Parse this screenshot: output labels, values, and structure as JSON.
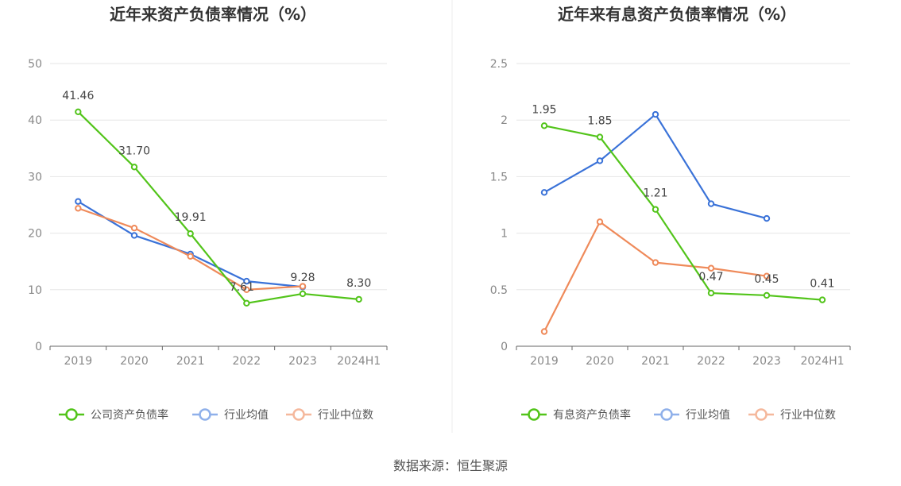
{
  "source": "数据来源：恒生聚源",
  "colors": {
    "green": "#52c41a",
    "blue": "#3a72d8",
    "orange": "#ef8a5a",
    "blue_legend": "#8fb0ea",
    "orange_legend": "#f5b89c"
  },
  "chart_data": [
    {
      "type": "line",
      "title": "近年来资产负债率情况（%）",
      "categories": [
        "2019",
        "2020",
        "2021",
        "2022",
        "2023",
        "2024H1"
      ],
      "ylim": [
        0,
        50
      ],
      "yticks": [
        0,
        10,
        20,
        30,
        40,
        50
      ],
      "ytick_labels": [
        "0",
        "10",
        "20",
        "30",
        "40",
        "50"
      ],
      "legend_position": "bottom",
      "series": [
        {
          "name": "公司资产负债率",
          "color": "green",
          "legend_color": "green",
          "labeled": true,
          "values": [
            41.46,
            31.7,
            19.91,
            7.61,
            9.28,
            8.3
          ],
          "labels": [
            "41.46",
            "31.70",
            "19.91",
            "7.61",
            "9.28",
            "8.30"
          ]
        },
        {
          "name": "行业均值",
          "color": "blue",
          "legend_color": "blue_legend",
          "labeled": false,
          "values": [
            25.6,
            19.6,
            16.3,
            11.5,
            10.5,
            null
          ]
        },
        {
          "name": "行业中位数",
          "color": "orange",
          "legend_color": "orange_legend",
          "labeled": false,
          "values": [
            24.4,
            20.9,
            15.9,
            10.0,
            10.6,
            null
          ]
        }
      ]
    },
    {
      "type": "line",
      "title": "近年来有息资产负债率情况（%）",
      "categories": [
        "2019",
        "2020",
        "2021",
        "2022",
        "2023",
        "2024H1"
      ],
      "ylim": [
        0,
        2.5
      ],
      "yticks": [
        0,
        0.5,
        1,
        1.5,
        2,
        2.5
      ],
      "ytick_labels": [
        "0",
        "0.5",
        "1",
        "1.5",
        "2",
        "2.5"
      ],
      "legend_position": "bottom",
      "series": [
        {
          "name": "有息资产负债率",
          "color": "green",
          "legend_color": "green",
          "labeled": true,
          "values": [
            1.95,
            1.85,
            1.21,
            0.47,
            0.45,
            0.41
          ],
          "labels": [
            "1.95",
            "1.85",
            "1.21",
            "0.47",
            "0.45",
            "0.41"
          ]
        },
        {
          "name": "行业均值",
          "color": "blue",
          "legend_color": "blue_legend",
          "labeled": false,
          "values": [
            1.36,
            1.64,
            2.05,
            1.26,
            1.13,
            null
          ]
        },
        {
          "name": "行业中位数",
          "color": "orange",
          "legend_color": "orange_legend",
          "labeled": false,
          "values": [
            0.13,
            1.1,
            0.74,
            0.69,
            0.62,
            null
          ]
        }
      ]
    }
  ]
}
